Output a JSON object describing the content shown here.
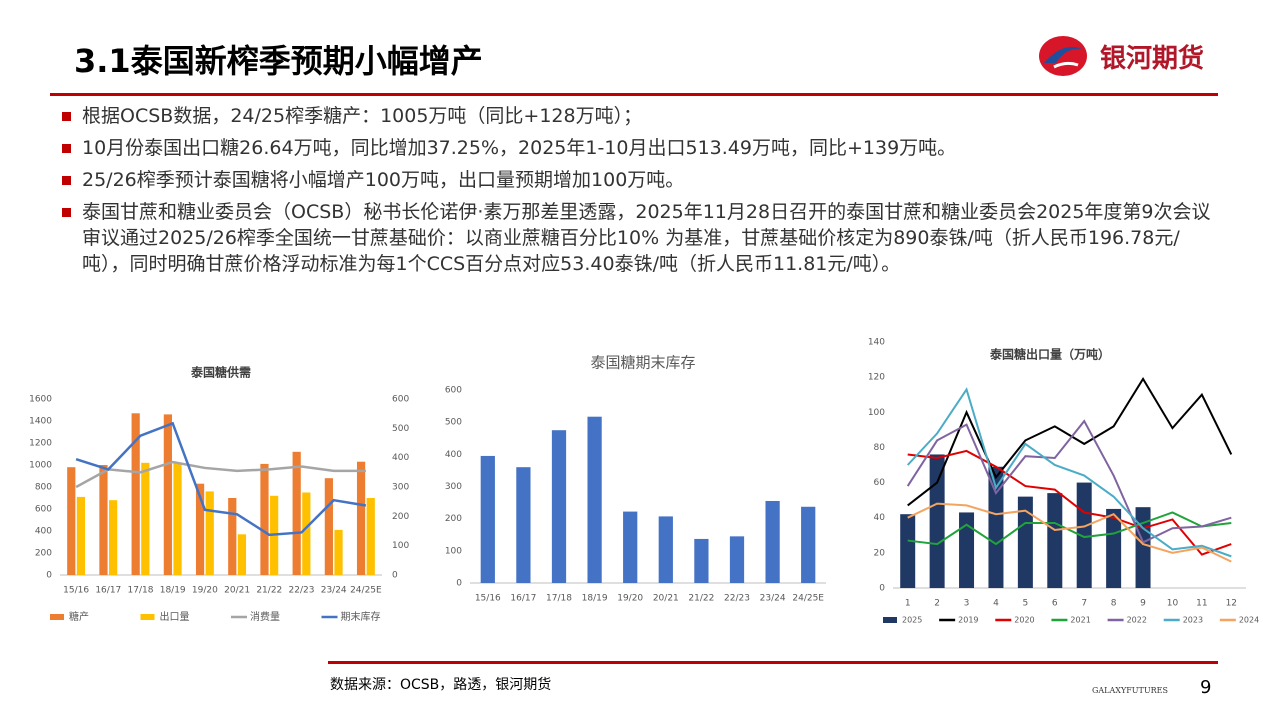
{
  "header": {
    "title": "3.1泰国新榨季预期小幅增产",
    "logo": "银河期货"
  },
  "bullets": [
    "根据OCSB数据，24/25榨季糖产：1005万吨（同比+128万吨）；",
    "10月份泰国出口糖26.64万吨，同比增加37.25%，2025年1-10月出口513.49万吨，同比+139万吨。",
    "25/26榨季预计泰国糖将小幅增产100万吨，出口量预期增加100万吨。",
    "泰国甘蔗和糖业委员会（OCSB）秘书长伦诺伊·素万那差里透露，2025年11月28日召开的泰国甘蔗和糖业委员会2025年度第9次会议审议通过2025/26榨季全国统一甘蔗基础价：以商业蔗糖百分比10% 为基准，甘蔗基础价核定为890泰铢/吨（折人民币196.78元/吨），同时明确甘蔗价格浮动标准为每1个CCS百分点对应53.40泰铢/吨（折人民币11.81元/吨）。"
  ],
  "chart_data": [
    {
      "type": "combo",
      "title": "泰国糖供需",
      "categories": [
        "15/16",
        "16/17",
        "17/18",
        "18/19",
        "19/20",
        "20/21",
        "21/22",
        "22/23",
        "23/24",
        "24/25E"
      ],
      "series": [
        {
          "name": "糖产",
          "type": "bar",
          "color": "#ED7D31",
          "values": [
            980,
            1000,
            1470,
            1460,
            830,
            700,
            1010,
            1120,
            880,
            1030
          ]
        },
        {
          "name": "出口量",
          "type": "bar",
          "color": "#FFC000",
          "values": [
            710,
            680,
            1020,
            1020,
            760,
            370,
            720,
            750,
            410,
            700
          ]
        },
        {
          "name": "消费量",
          "type": "line",
          "axis": "y2",
          "color": "#A5A5A5",
          "values": [
            300,
            360,
            350,
            385,
            365,
            355,
            360,
            370,
            355,
            355
          ]
        },
        {
          "name": "期末库存",
          "type": "line",
          "axis": "y2",
          "color": "#4472C4",
          "values": [
            395,
            360,
            475,
            517,
            222,
            207,
            137,
            145,
            255,
            237
          ]
        }
      ],
      "ylim": [
        0,
        1600
      ],
      "yticks": [
        0,
        200,
        400,
        600,
        800,
        1000,
        1200,
        1400,
        1600
      ],
      "y2lim": [
        0,
        600
      ],
      "y2ticks": [
        0,
        100,
        200,
        300,
        400,
        500,
        600
      ],
      "legend": "bottom"
    },
    {
      "type": "bar",
      "title": "泰国糖期末库存",
      "categories": [
        "15/16",
        "16/17",
        "17/18",
        "18/19",
        "19/20",
        "20/21",
        "21/22",
        "22/23",
        "23/24",
        "24/25E"
      ],
      "values": [
        395,
        360,
        475,
        517,
        222,
        207,
        137,
        145,
        255,
        237
      ],
      "color": "#4472C4",
      "ylim": [
        0,
        600
      ],
      "yticks": [
        0,
        100,
        200,
        300,
        400,
        500,
        600
      ]
    },
    {
      "type": "combo",
      "title": "泰国糖出口量（万吨）",
      "categories": [
        1,
        2,
        3,
        4,
        5,
        6,
        7,
        8,
        9,
        10,
        11,
        12
      ],
      "series": [
        {
          "name": "2025",
          "type": "bar",
          "color": "#203864",
          "values": [
            42,
            76,
            43,
            69,
            52,
            54,
            60,
            45,
            46,
            null,
            null,
            null
          ]
        },
        {
          "name": "2019",
          "type": "line",
          "color": "#000000",
          "values": [
            47,
            60,
            100,
            63,
            84,
            92,
            82,
            92,
            119,
            91,
            110,
            76
          ]
        },
        {
          "name": "2020",
          "type": "line",
          "color": "#E00000",
          "values": [
            76,
            74,
            78,
            69,
            58,
            56,
            43,
            40,
            34,
            39,
            19,
            25
          ]
        },
        {
          "name": "2021",
          "type": "line",
          "color": "#1FA33A",
          "values": [
            27,
            25,
            36,
            25,
            37,
            37,
            29,
            31,
            37,
            43,
            35,
            37
          ]
        },
        {
          "name": "2022",
          "type": "line",
          "color": "#8064A2",
          "values": [
            58,
            84,
            93,
            54,
            75,
            74,
            95,
            64,
            26,
            34,
            35,
            40
          ]
        },
        {
          "name": "2023",
          "type": "line",
          "color": "#4BACC6",
          "values": [
            70,
            88,
            113,
            57,
            82,
            70,
            64,
            52,
            34,
            22,
            24,
            18
          ]
        },
        {
          "name": "2024",
          "type": "line",
          "color": "#F4A460",
          "values": [
            40,
            48,
            47,
            42,
            44,
            33,
            35,
            42,
            25,
            20,
            23,
            15
          ]
        }
      ],
      "ylim": [
        0,
        140
      ],
      "yticks": [
        0,
        20,
        40,
        60,
        80,
        100,
        120,
        140
      ],
      "legend": "bottom"
    }
  ],
  "footer": {
    "source": "数据来源：OCSB，路透，银河期货",
    "brand": "GALAXYFUTURES",
    "page": "9"
  }
}
